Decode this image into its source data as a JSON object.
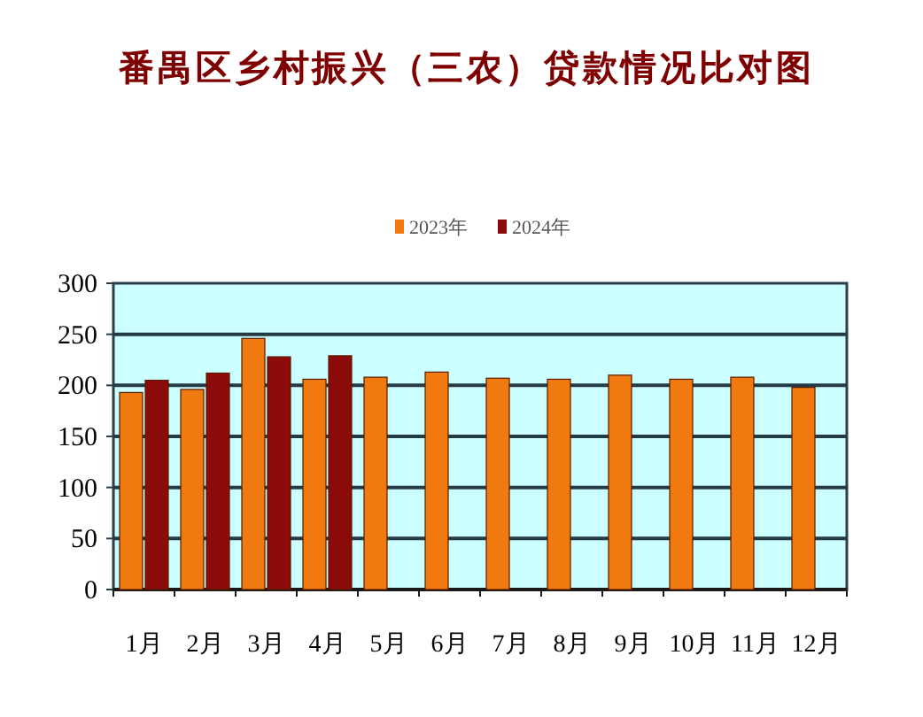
{
  "chart_data": {
    "type": "bar",
    "title": "番禺区乡村振兴（三农）贷款情况比对图",
    "categories": [
      "1月",
      "2月",
      "3月",
      "4月",
      "5月",
      "6月",
      "7月",
      "8月",
      "9月",
      "10月",
      "11月",
      "12月"
    ],
    "series": [
      {
        "name": "2023年",
        "color": "#f07a10",
        "values": [
          193,
          196,
          246,
          206,
          208,
          213,
          207,
          206,
          210,
          206,
          208,
          198
        ]
      },
      {
        "name": "2024年",
        "color": "#8b0a0a",
        "values": [
          205,
          212,
          228,
          229,
          null,
          null,
          null,
          null,
          null,
          null,
          null,
          null
        ]
      }
    ],
    "ylim": [
      0,
      300
    ],
    "yticks": [
      0,
      50,
      100,
      150,
      200,
      250,
      300
    ],
    "grid": "y",
    "legend": "top"
  }
}
